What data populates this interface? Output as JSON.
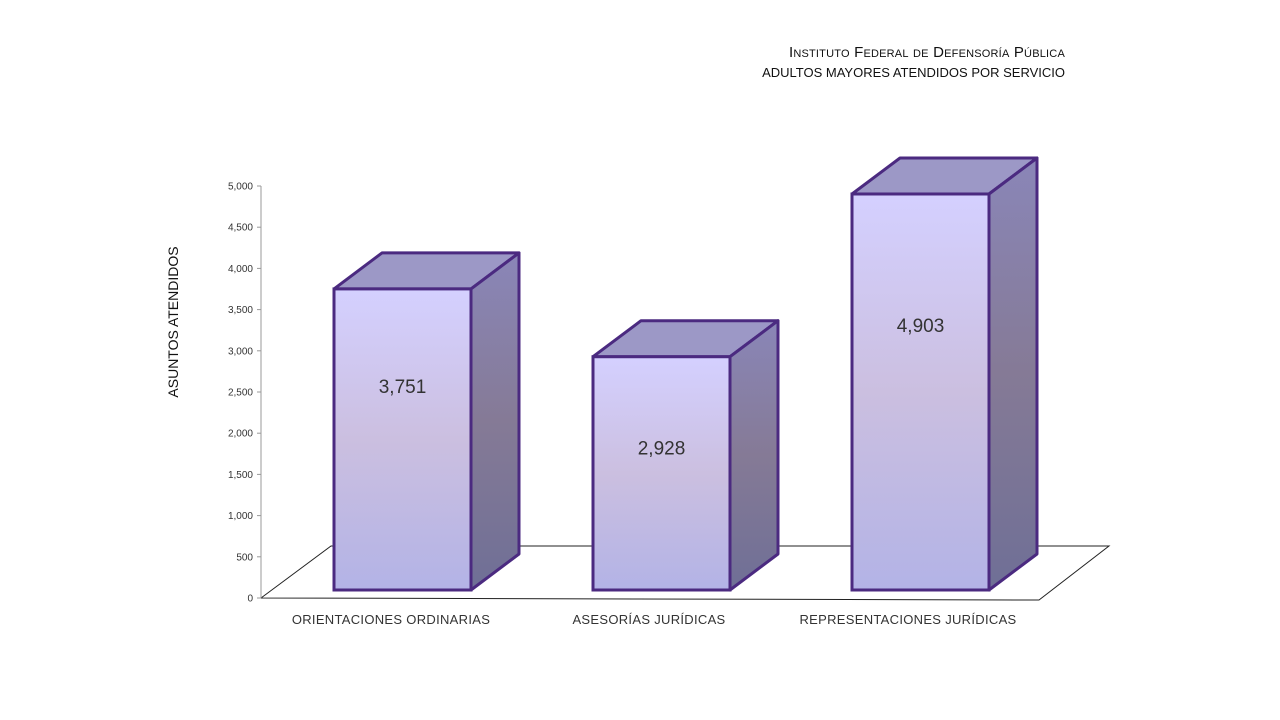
{
  "chart_data": {
    "type": "bar",
    "title": "Instituto Federal de Defensoría Pública",
    "subtitle": "ADULTOS MAYORES ATENDIDOS POR SERVICIO",
    "ylabel": "ASUNTOS ATENDIDOS",
    "xlabel": "",
    "categories": [
      "ORIENTACIONES ORDINARIAS",
      "ASESORÍAS JURÍDICAS",
      "REPRESENTACIONES JURÍDICAS"
    ],
    "values": [
      3751,
      2928,
      4903
    ],
    "data_labels": [
      "3,751",
      "2,928",
      "4,903"
    ],
    "ylim": [
      0,
      5000
    ],
    "yticks": [
      0,
      500,
      1000,
      1500,
      2000,
      2500,
      3000,
      3500,
      4000,
      4500,
      5000
    ],
    "ytick_labels": [
      "0",
      "500",
      "1,000",
      "1,500",
      "2,000",
      "2,500",
      "3,000",
      "3,500",
      "4,000",
      "4,500",
      "5,000"
    ],
    "style": "3d-column",
    "grid": false,
    "legend": "none",
    "colors": {
      "front_top": "#d4d0ff",
      "front_mid": "#cbbfe0",
      "front_bottom": "#b3b3e6",
      "side_top": "#8a86b8",
      "side_mid": "#857a96",
      "side_bottom": "#6f6f96",
      "top_face": "#9c98c6",
      "outline": "#4b2a80"
    }
  }
}
